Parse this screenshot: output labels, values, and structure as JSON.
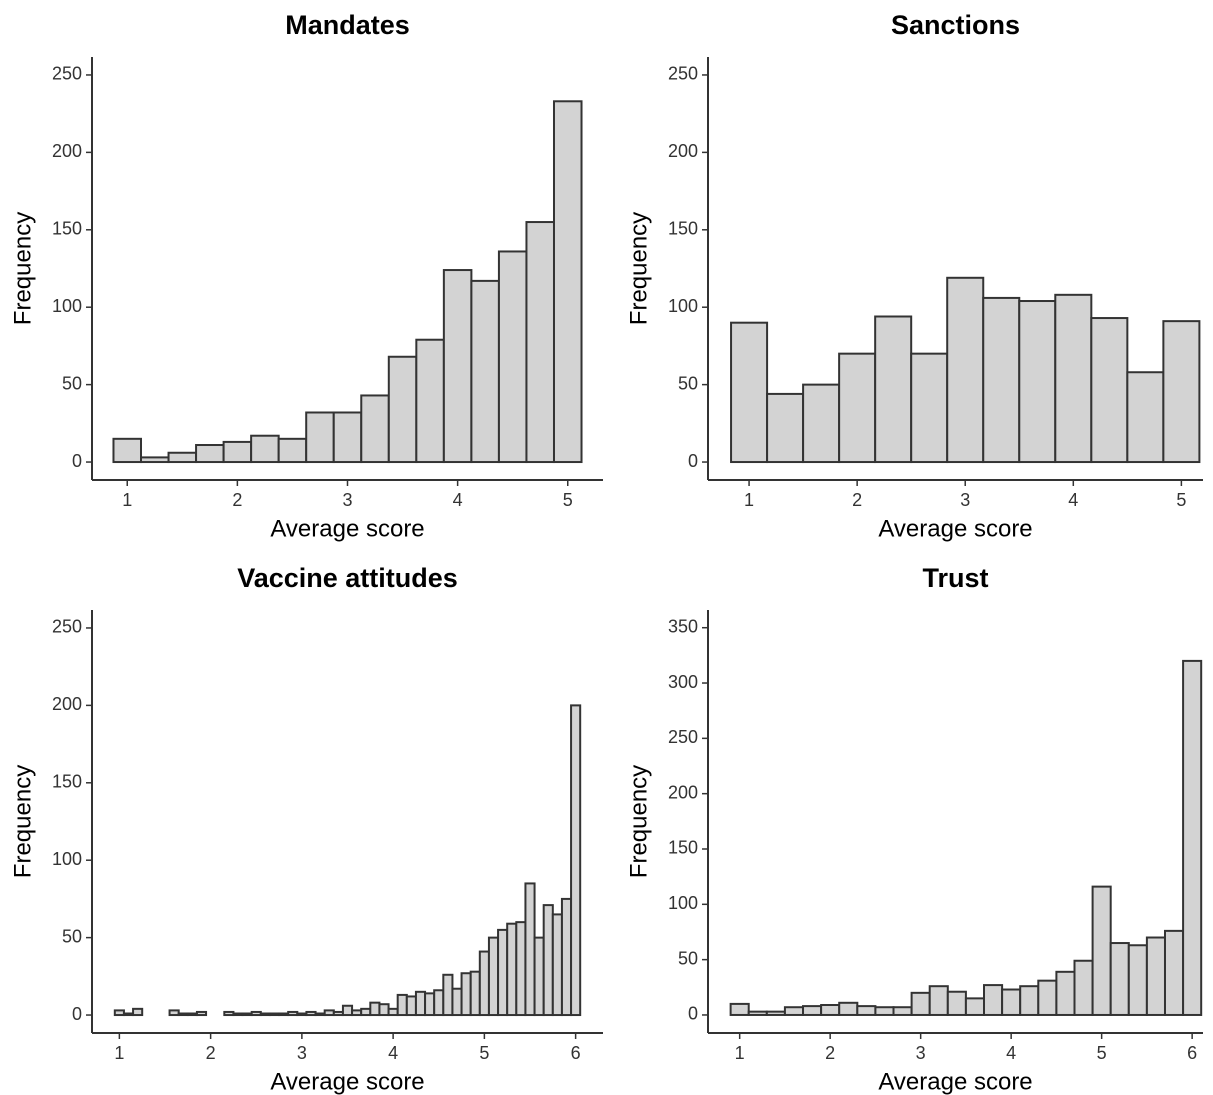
{
  "chart_data": [
    {
      "type": "histogram",
      "title": "Mandates",
      "xlabel": "Average score",
      "ylabel": "Frequency",
      "bins": [
        0.875,
        1.125,
        1.375,
        1.625,
        1.875,
        2.125,
        2.375,
        2.625,
        2.875,
        3.125,
        3.375,
        3.625,
        3.875,
        4.125,
        4.375,
        4.625,
        4.875,
        5.125
      ],
      "counts": [
        15,
        3,
        6,
        11,
        13,
        17,
        15,
        32,
        32,
        43,
        68,
        79,
        124,
        117,
        136,
        155,
        233
      ],
      "color": "#d3d3d3",
      "edgecolor": "#333333",
      "xlim": [
        0.68,
        5.32
      ],
      "ylim": [
        -11.6,
        261.6
      ],
      "xticks": [
        1,
        2,
        3,
        4,
        5
      ],
      "yticks": [
        0,
        50,
        100,
        150,
        200,
        250
      ]
    },
    {
      "type": "histogram",
      "title": "Sanctions",
      "xlabel": "Average score",
      "ylabel": "Frequency",
      "bins": [
        0.8333,
        1.1667,
        1.5,
        1.8333,
        2.1667,
        2.5,
        2.8333,
        3.1667,
        3.5,
        3.8333,
        4.1667,
        4.5,
        4.8333,
        5.1667
      ],
      "counts": [
        90,
        44,
        50,
        70,
        94,
        70,
        119,
        106,
        104,
        108,
        93,
        58,
        91
      ],
      "color": "#d3d3d3",
      "edgecolor": "#333333",
      "xlim": [
        0.62,
        5.2
      ],
      "ylim": [
        -11.6,
        261.6
      ],
      "xticks": [
        1,
        2,
        3,
        4,
        5
      ],
      "yticks": [
        0,
        50,
        100,
        150,
        200,
        250
      ]
    },
    {
      "type": "histogram",
      "title": "Vaccine attitudes",
      "xlabel": "Average score",
      "ylabel": "Frequency",
      "bins": [
        0.95,
        1.05,
        1.15,
        1.25,
        1.35,
        1.45,
        1.55,
        1.65,
        1.75,
        1.85,
        1.95,
        2.05,
        2.15,
        2.25,
        2.35,
        2.45,
        2.55,
        2.65,
        2.75,
        2.85,
        2.95,
        3.05,
        3.15,
        3.25,
        3.35,
        3.45,
        3.55,
        3.65,
        3.75,
        3.85,
        3.95,
        4.05,
        4.15,
        4.25,
        4.35,
        4.45,
        4.55,
        4.65,
        4.75,
        4.85,
        4.95,
        5.05,
        5.15,
        5.25,
        5.35,
        5.45,
        5.55,
        5.65,
        5.75,
        5.85,
        5.95,
        6.05
      ],
      "counts": [
        3,
        1,
        4,
        0,
        0,
        0,
        3,
        1,
        1,
        2,
        0,
        0,
        2,
        1,
        1,
        2,
        1,
        1,
        1,
        2,
        1,
        2,
        1,
        3,
        2,
        6,
        3,
        4,
        8,
        7,
        4,
        13,
        12,
        15,
        14,
        16,
        26,
        17,
        27,
        28,
        41,
        50,
        55,
        59,
        60,
        85,
        50,
        71,
        65,
        75,
        200
      ],
      "color": "#d3d3d3",
      "edgecolor": "#333333",
      "xlim": [
        0.7,
        6.3
      ],
      "ylim": [
        -11.6,
        261.6
      ],
      "xticks": [
        1,
        2,
        3,
        4,
        5,
        6
      ],
      "yticks": [
        0,
        50,
        100,
        150,
        200,
        250
      ]
    },
    {
      "type": "histogram",
      "title": "Trust",
      "xlabel": "Average score",
      "ylabel": "Frequency",
      "bins": [
        0.9,
        1.1,
        1.3,
        1.5,
        1.7,
        1.9,
        2.1,
        2.3,
        2.5,
        2.7,
        2.9,
        3.1,
        3.3,
        3.5,
        3.7,
        3.9,
        4.1,
        4.3,
        4.5,
        4.7,
        4.9,
        5.1,
        5.3,
        5.5,
        5.7,
        5.9,
        6.1
      ],
      "counts": [
        10,
        3,
        3,
        7,
        8,
        9,
        11,
        8,
        7,
        7,
        20,
        26,
        21,
        15,
        27,
        23,
        26,
        31,
        39,
        49,
        116,
        65,
        63,
        70,
        76,
        320
      ],
      "color": "#d3d3d3",
      "edgecolor": "#333333",
      "xlim": [
        0.65,
        6.12
      ],
      "ylim": [
        -16.3,
        366
      ],
      "xticks": [
        1,
        2,
        3,
        4,
        5,
        6
      ],
      "yticks": [
        0,
        50,
        100,
        150,
        200,
        250,
        300,
        350
      ]
    }
  ]
}
